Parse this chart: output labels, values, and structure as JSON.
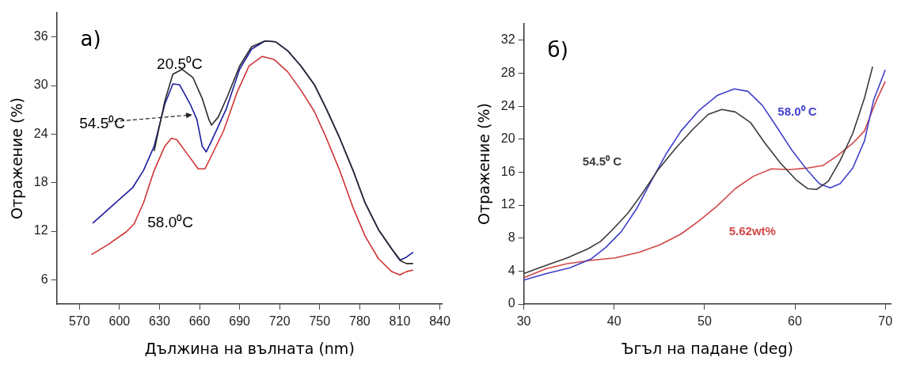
{
  "chart_data": [
    {
      "type": "line",
      "title": "a)",
      "xlabel": "Дължина на вълната (nm)",
      "ylabel": "Отражение (%)",
      "xlim": [
        553,
        842
      ],
      "xticks": [
        570,
        600,
        630,
        660,
        690,
        720,
        750,
        780,
        810,
        840
      ],
      "ylim": [
        3,
        39
      ],
      "yticks": [
        6,
        12,
        18,
        24,
        30,
        36
      ],
      "series": [
        {
          "name": "20.5⁰C",
          "color": "#2a2a2a",
          "x": [
            626,
            634,
            640,
            647,
            655,
            662,
            667,
            669,
            674,
            681,
            690,
            699,
            709,
            717,
            726,
            736,
            746,
            755,
            765,
            775,
            784,
            794,
            804,
            811,
            815,
            820
          ],
          "values": [
            21.9,
            28.1,
            31.4,
            32.0,
            31.0,
            28.4,
            25.8,
            25.1,
            26.1,
            28.7,
            32.4,
            34.8,
            35.5,
            35.4,
            34.3,
            32.4,
            30.1,
            27.1,
            23.5,
            19.5,
            15.5,
            12.2,
            9.8,
            8.3,
            8.0,
            8.0
          ]
        },
        {
          "name": "54.5⁰C",
          "color": "#1c1ca0",
          "x": [
            580,
            595,
            610,
            618,
            626,
            634,
            640,
            645,
            653,
            658,
            662,
            665,
            670,
            680,
            690,
            699,
            709,
            717,
            726,
            736,
            746,
            755,
            765,
            775,
            784,
            794,
            804,
            810,
            815,
            820
          ],
          "values": [
            13.0,
            15.2,
            17.4,
            19.5,
            22.5,
            27.7,
            30.2,
            30.1,
            27.7,
            25.8,
            22.5,
            21.8,
            23.5,
            27.1,
            32.0,
            34.5,
            35.5,
            35.4,
            34.3,
            32.4,
            30.1,
            27.1,
            23.5,
            19.5,
            15.5,
            12.2,
            9.8,
            8.4,
            8.8,
            9.4
          ]
        },
        {
          "name": "58.0⁰C",
          "color": "#d03434",
          "x": [
            579,
            591,
            605,
            611,
            618,
            626,
            634,
            639,
            643,
            651,
            659,
            664,
            668,
            678,
            688,
            697,
            707,
            716,
            726,
            736,
            746,
            755,
            765,
            775,
            784,
            794,
            804,
            810,
            815,
            820
          ],
          "values": [
            9.1,
            10.3,
            11.9,
            12.9,
            15.5,
            19.5,
            22.5,
            23.5,
            23.3,
            21.5,
            19.7,
            19.7,
            21.0,
            24.4,
            29.1,
            32.4,
            33.6,
            33.2,
            31.7,
            29.4,
            26.8,
            23.5,
            19.5,
            14.9,
            11.4,
            8.6,
            7.0,
            6.6,
            7.0,
            7.2
          ]
        }
      ]
    },
    {
      "type": "line",
      "title": "б)",
      "xlabel": "Ъгъл на падане (deg)",
      "ylabel": "Отражение (%)",
      "xlim": [
        30,
        70.6
      ],
      "xticks": [
        30,
        40,
        50,
        60,
        70
      ],
      "ylim": [
        0,
        34
      ],
      "yticks": [
        0,
        4,
        8,
        12,
        16,
        20,
        24,
        28,
        32
      ],
      "series": [
        {
          "name": "54.5⁰ C",
          "color": "#3a3a3a",
          "x": [
            30,
            32.5,
            34.8,
            37.1,
            38.5,
            39.8,
            41.5,
            43.1,
            44.8,
            46.8,
            48.8,
            50.4,
            51.9,
            53.4,
            55.1,
            56.7,
            58.4,
            60.1,
            61.4,
            62.4,
            63.7,
            65.0,
            66.4,
            67.7,
            68.6
          ],
          "values": [
            3.7,
            4.7,
            5.6,
            6.7,
            7.6,
            9.0,
            11.0,
            13.4,
            16.2,
            18.9,
            21.3,
            23.0,
            23.6,
            23.3,
            22.0,
            19.5,
            17.1,
            15.1,
            14.0,
            13.9,
            14.9,
            17.4,
            20.7,
            25.0,
            28.8
          ]
        },
        {
          "name": "58.0⁰ C",
          "color": "#3f3fcc",
          "x": [
            30,
            32.5,
            35.1,
            37.5,
            39.1,
            40.8,
            42.5,
            44.1,
            45.8,
            47.4,
            49.4,
            51.4,
            53.3,
            54.8,
            56.4,
            58.1,
            59.7,
            61.4,
            62.7,
            63.9,
            65.0,
            66.4,
            67.7,
            68.7,
            70
          ],
          "values": [
            2.9,
            3.7,
            4.4,
            5.5,
            6.9,
            8.8,
            11.6,
            14.9,
            18.3,
            21.0,
            23.5,
            25.3,
            26.1,
            25.8,
            24.1,
            21.3,
            18.6,
            16.2,
            14.6,
            14.1,
            14.6,
            16.5,
            19.8,
            24.7,
            28.4
          ]
        },
        {
          "name": "5.62wt%",
          "color": "#d24646",
          "x": [
            30,
            32.5,
            34.8,
            37.5,
            40.1,
            42.8,
            45.1,
            47.4,
            49.4,
            51.4,
            53.4,
            55.4,
            57.4,
            59.4,
            61.4,
            63.1,
            64.7,
            66.4,
            67.7,
            68.9,
            70
          ],
          "values": [
            3.2,
            4.3,
            4.9,
            5.3,
            5.6,
            6.3,
            7.2,
            8.5,
            10.1,
            11.9,
            14.0,
            15.5,
            16.4,
            16.3,
            16.5,
            16.8,
            18.0,
            19.5,
            21.0,
            24.4,
            27.0
          ]
        }
      ]
    }
  ]
}
